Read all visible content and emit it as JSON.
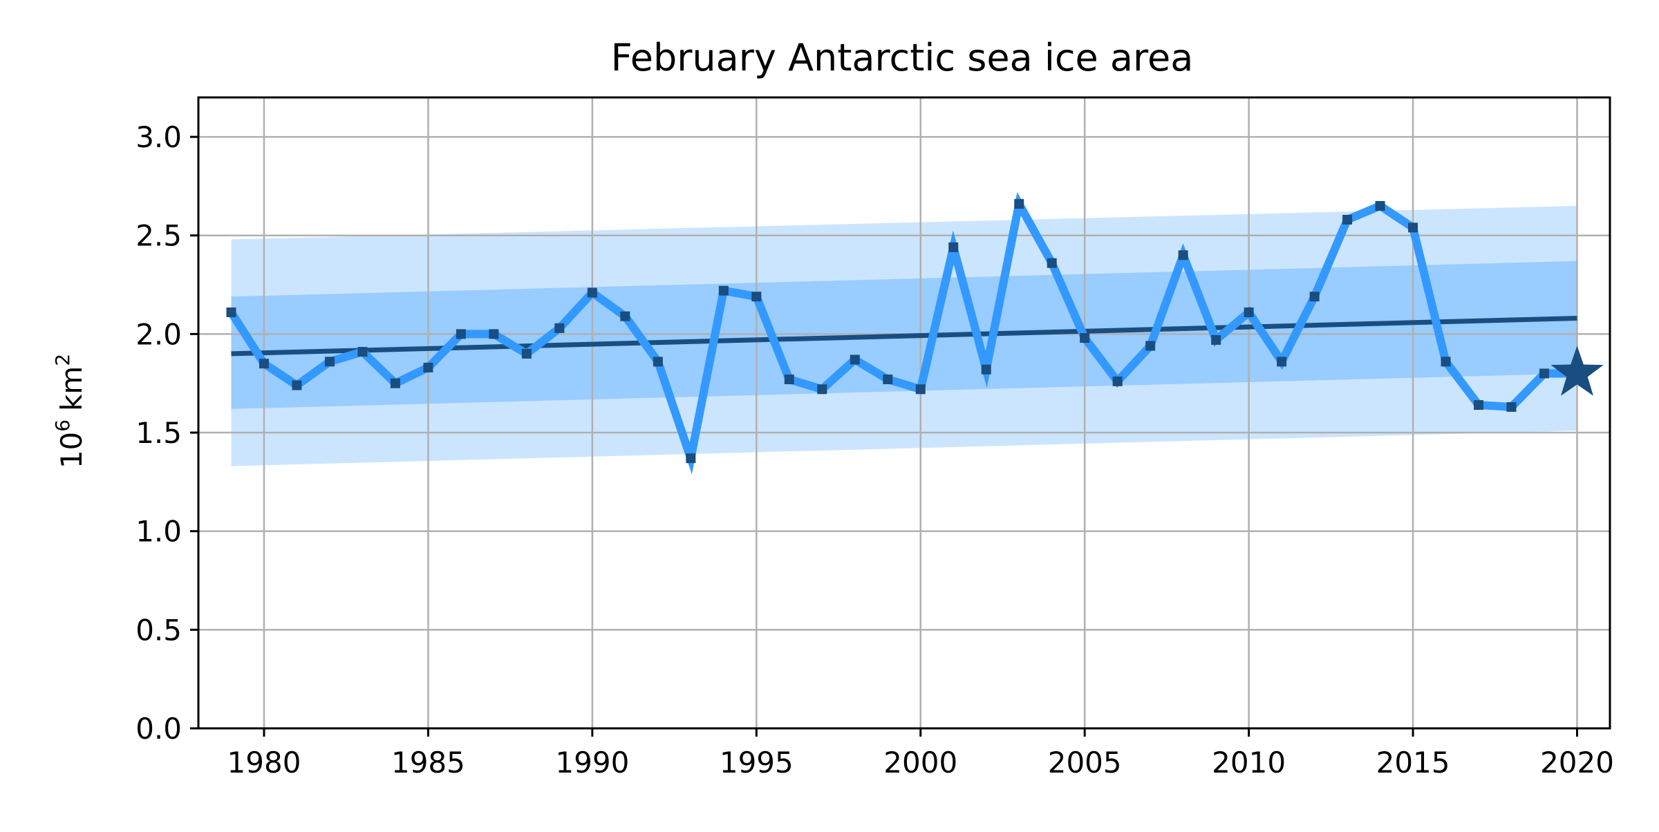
{
  "colors": {
    "observed_line": "#3399ff",
    "observed_marker": "#1a4d80",
    "trend_line": "#1a4d80",
    "band_1sigma": "#99ccff",
    "band_2sigma": "#cce5ff",
    "grid": "#b0b0b0",
    "axis": "#000000",
    "star": "#1a4d80"
  },
  "chart_data": {
    "type": "line",
    "title": "February Antarctic sea ice area",
    "xlabel": "",
    "ylabel_base": "10",
    "ylabel_exp": "6",
    "ylabel_unit": "km",
    "ylabel_unit_exp": "2",
    "xlim": [
      1978,
      2021
    ],
    "ylim": [
      0,
      3.2
    ],
    "xticks": [
      1980,
      1985,
      1990,
      1995,
      2000,
      2005,
      2010,
      2015,
      2020
    ],
    "xtick_labels": [
      "1980",
      "1985",
      "1990",
      "1995",
      "2000",
      "2005",
      "2010",
      "2015",
      "2020"
    ],
    "yticks": [
      0.0,
      0.5,
      1.0,
      1.5,
      2.0,
      2.5,
      3.0
    ],
    "ytick_labels": [
      "0.0",
      "0.5",
      "1.0",
      "1.5",
      "2.0",
      "2.5",
      "3.0"
    ],
    "grid": true,
    "legend": "none",
    "series": [
      {
        "x": [
          1979,
          1980,
          1981,
          1982,
          1983,
          1984,
          1985,
          1986,
          1987,
          1988,
          1989,
          1990,
          1991,
          1992,
          1993,
          1994,
          1995,
          1996,
          1997,
          1998,
          1999,
          2000,
          2001,
          2002,
          2003,
          2004,
          2005,
          2006,
          2007,
          2008,
          2009,
          2010,
          2011,
          2012,
          2013,
          2014,
          2015,
          2016,
          2017,
          2018,
          2019,
          2020
        ],
        "values": [
          2.11,
          1.85,
          1.74,
          1.86,
          1.91,
          1.75,
          1.83,
          2.0,
          2.0,
          1.9,
          2.03,
          2.21,
          2.09,
          1.86,
          1.37,
          2.22,
          2.19,
          1.77,
          1.72,
          1.87,
          1.77,
          1.72,
          2.44,
          1.82,
          2.66,
          2.36,
          1.98,
          1.76,
          1.94,
          2.4,
          1.97,
          2.11,
          1.86,
          2.19,
          2.58,
          2.65,
          2.54,
          1.86,
          1.64,
          1.63,
          1.8,
          1.8
        ]
      }
    ],
    "highlight": {
      "x": 2020,
      "value": 1.8,
      "marker": "star"
    },
    "trend": {
      "x": [
        1979,
        2020
      ],
      "values": [
        1.9,
        2.08
      ]
    },
    "band_1sigma": {
      "x": [
        1979,
        2020
      ],
      "lower": [
        1.62,
        1.8
      ],
      "upper": [
        2.19,
        2.37
      ]
    },
    "band_2sigma": {
      "x": [
        1979,
        2020
      ],
      "lower": [
        1.33,
        1.51
      ],
      "upper": [
        2.48,
        2.65
      ]
    }
  }
}
